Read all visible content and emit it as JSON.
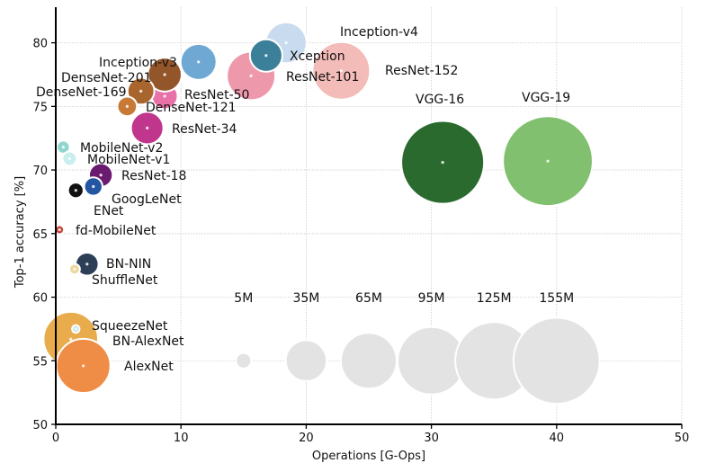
{
  "chart_data": {
    "type": "scatter",
    "subtype": "bubble",
    "title": "",
    "xlabel": "Operations [G-Ops]",
    "ylabel": "Top-1 accuracy [%]",
    "xlim": [
      0,
      50
    ],
    "ylim": [
      50,
      82.8
    ],
    "xticks": [
      0,
      10,
      20,
      30,
      40,
      50
    ],
    "yticks": [
      50,
      55,
      60,
      65,
      70,
      75,
      80
    ],
    "grid": true,
    "size_unit": "parameters (M)",
    "points": [
      {
        "name": "VGG-19",
        "x": 39.3,
        "y": 70.7,
        "params": 168,
        "color": "#80c06e"
      },
      {
        "name": "VGG-16",
        "x": 30.9,
        "y": 70.6,
        "params": 143,
        "color": "#2b6a2e"
      },
      {
        "name": "ResNet-152",
        "x": 22.8,
        "y": 77.8,
        "params": 69,
        "color": "#f3bcb8"
      },
      {
        "name": "Inception-v4",
        "x": 18.4,
        "y": 80.0,
        "params": 35,
        "color": "#c9dcef"
      },
      {
        "name": "ResNet-101",
        "x": 15.6,
        "y": 77.4,
        "params": 49,
        "color": "#ee98ab"
      },
      {
        "name": "Xception",
        "x": 16.8,
        "y": 79.0,
        "params": 22,
        "color": "#3b7f98"
      },
      {
        "name": "BN-AlexNet",
        "x": 1.2,
        "y": 56.7,
        "params": 62,
        "color": "#e9ac4c"
      },
      {
        "name": "AlexNet",
        "x": 2.2,
        "y": 54.6,
        "params": 61,
        "color": "#ef8c45"
      },
      {
        "name": "SqueezeNet",
        "x": 1.6,
        "y": 57.5,
        "params": 1.2,
        "color": "#c4e2e6"
      },
      {
        "name": "",
        "x": 11.4,
        "y": 78.5,
        "params": 27,
        "color": "#70a8d4"
      },
      {
        "name": "ResNet-50",
        "x": 8.7,
        "y": 75.8,
        "params": 14,
        "color": "#e872a8"
      },
      {
        "name": "Inception-v3",
        "x": 8.7,
        "y": 77.5,
        "params": 24,
        "color": "#93552a"
      },
      {
        "name": "DenseNet-201",
        "x": 6.8,
        "y": 76.2,
        "params": 15,
        "color": "#a8652d"
      },
      {
        "name": "DenseNet-169",
        "x": 5.7,
        "y": 75.0,
        "params": 8,
        "color": "#c77a36"
      },
      {
        "name": "ResNet-34",
        "x": 7.3,
        "y": 73.3,
        "params": 22,
        "color": "#c0368d"
      },
      {
        "name": "MobileNet-v2",
        "x": 0.6,
        "y": 71.8,
        "params": 3.5,
        "color": "#8fd6ce"
      },
      {
        "name": "MobileNet-v1",
        "x": 1.1,
        "y": 70.9,
        "params": 4.2,
        "color": "#c9eeee"
      },
      {
        "name": "ResNet-18",
        "x": 3.6,
        "y": 69.6,
        "params": 11.7,
        "color": "#6b1b6f"
      },
      {
        "name": "GoogLeNet",
        "x": 3.0,
        "y": 68.7,
        "params": 7,
        "color": "#2457a1"
      },
      {
        "name": "ENet",
        "x": 1.6,
        "y": 68.4,
        "params": 5,
        "color": "#111111"
      },
      {
        "name": "fd-MobileNet",
        "x": 0.3,
        "y": 65.3,
        "params": 1.7,
        "color": "#c8473a"
      },
      {
        "name": "BN-NIN",
        "x": 2.5,
        "y": 62.6,
        "params": 11,
        "color": "#2d3f56"
      },
      {
        "name": "ShuffleNet",
        "x": 1.5,
        "y": 62.2,
        "params": 2.4,
        "color": "#ecd9a0"
      }
    ],
    "extra_labels": [
      "DenseNet-121"
    ],
    "size_legend": [
      {
        "label": "5M",
        "x": 15,
        "y": 55,
        "params": 5
      },
      {
        "label": "35M",
        "x": 20,
        "y": 55,
        "params": 35
      },
      {
        "label": "65M",
        "x": 25,
        "y": 55,
        "params": 65
      },
      {
        "label": "95M",
        "x": 30,
        "y": 55,
        "params": 95
      },
      {
        "label": "125M",
        "x": 35,
        "y": 55,
        "params": 125
      },
      {
        "label": "155M",
        "x": 40,
        "y": 55,
        "params": 155
      }
    ],
    "legend_color": "#e3e3e3"
  }
}
